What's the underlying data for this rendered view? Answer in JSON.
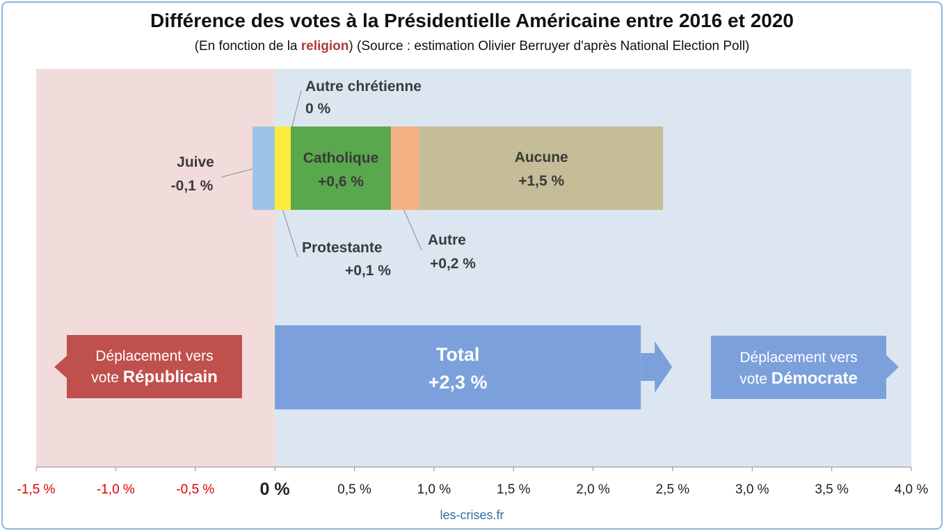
{
  "title": "Différence des votes à la Présidentielle Américaine entre 2016 et 2020",
  "subtitle": {
    "prefix": "(En fonction de la ",
    "keyword": "religion",
    "suffix": ") (Source : estimation Olivier Berruyer d'après National Election Poll)"
  },
  "footer": "les-crises.fr",
  "colors": {
    "republican_zone": "#f2dcdb",
    "democrat_zone": "#dce6f1",
    "juive": "#9dc3e6",
    "protestante": "#ffeb3b",
    "catholique": "#5aa84d",
    "autre": "#f4b183",
    "aucune": "#c4bd97",
    "total": "#7ba0dc",
    "republican_label": "#c0504d",
    "democrat_label": "#7ba0dc",
    "negative_tick": "#e00000"
  },
  "chart_data": {
    "type": "bar",
    "orientation": "horizontal",
    "stacked": true,
    "xlim": [
      -1.5,
      4.0
    ],
    "x_ticks": [
      -1.5,
      -1.0,
      -0.5,
      0,
      0.5,
      1.0,
      1.5,
      2.0,
      2.5,
      3.0,
      3.5,
      4.0
    ],
    "x_tick_labels": [
      "-1,5 %",
      "-1,0 %",
      "-0,5 %",
      "0 %",
      "0,5 %",
      "1,0 %",
      "1,5 %",
      "2,0 %",
      "2,5 %",
      "3,0 %",
      "3,5 %",
      "4,0 %"
    ],
    "series": [
      {
        "name": "Juive",
        "value": -0.14,
        "label": "-0,1 %"
      },
      {
        "name": "Protestante",
        "value": 0.1,
        "label": "+0,1 %"
      },
      {
        "name": "Autre chrétienne",
        "value": 0.0,
        "label": "0 %"
      },
      {
        "name": "Catholique",
        "value": 0.63,
        "label": "+0,6 %"
      },
      {
        "name": "Autre",
        "value": 0.18,
        "label": "+0,2 %"
      },
      {
        "name": "Aucune",
        "value": 1.53,
        "label": "+1,5 %"
      }
    ],
    "total": {
      "name": "Total",
      "value": 2.3,
      "label": "+2,3 %"
    },
    "annotations": {
      "republican": {
        "line1": "Déplacement vers",
        "line2_plain": "vote ",
        "line2_bold": "Républicain"
      },
      "democrat": {
        "line1": "Déplacement vers",
        "line2_plain": "vote ",
        "line2_bold": "Démocrate"
      }
    }
  }
}
